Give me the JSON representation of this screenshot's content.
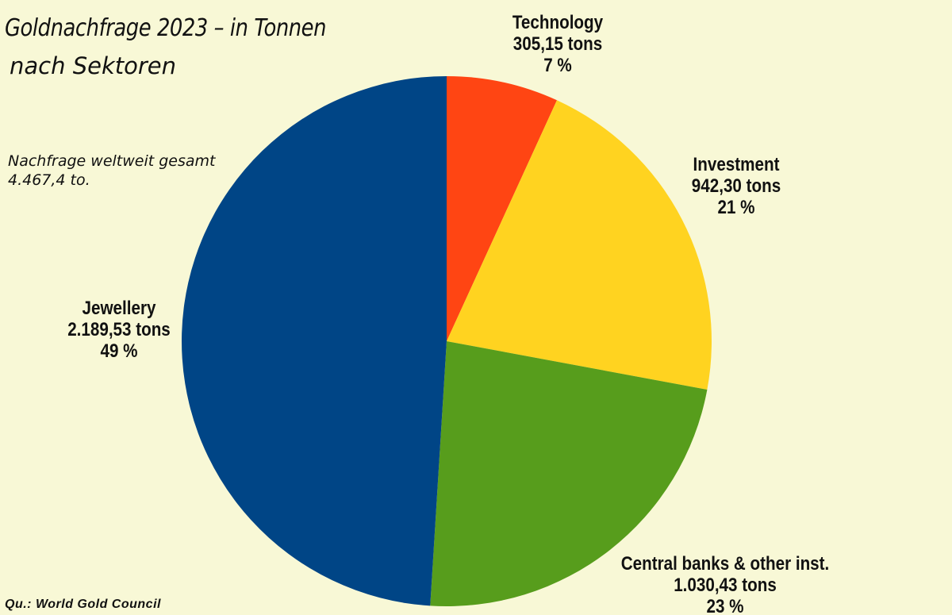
{
  "title": "Goldnachfrage 2023 – in Tonnen",
  "subtitle": "nach Sektoren",
  "note": {
    "line1": "Nachfrage weltweit gesamt",
    "line2": "4.467,4 to."
  },
  "source": "Qu.: World Gold Council",
  "colors": {
    "Technology": "#ff4513",
    "Investment": "#ffd320",
    "Central banks & other inst.": "#579d1c",
    "Jewellery": "#004586",
    "background": "#f8f8d6"
  },
  "chart_data": {
    "type": "pie",
    "start": "top, clockwise",
    "slices": [
      {
        "label": "Technology",
        "value": 305.15,
        "value_text": "305,15 tons",
        "percent_text": "7 %"
      },
      {
        "label": "Investment",
        "value": 942.3,
        "value_text": "942,30 tons",
        "percent_text": "21 %"
      },
      {
        "label": "Central banks & other inst.",
        "value": 1030.43,
        "value_text": "1.030,43 tons",
        "percent_text": "23 %"
      },
      {
        "label": "Jewellery",
        "value": 2189.53,
        "value_text": "2.189,53 tons",
        "percent_text": "49 %"
      }
    ]
  }
}
